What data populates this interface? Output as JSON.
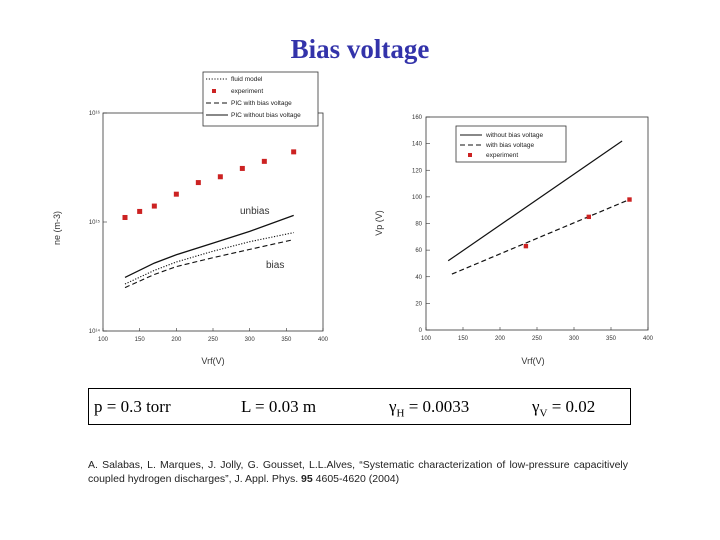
{
  "title": "Bias voltage",
  "params": {
    "p": "p = 0.3 torr",
    "L": "L = 0.03 m",
    "gammaH_sym": "γ",
    "gammaH_sub": "H",
    "gammaH_val": " = 0.0033",
    "gammaV_sym": "γ",
    "gammaV_sub": "V",
    "gammaV_val": " = 0.02"
  },
  "citation": {
    "pre": "A. Salabas, L. Marques, J. Jolly, G. Gousset, L.L.Alves, “Systematic characterization of low-pressure capacitively coupled hydrogen discharges”, J. Appl. Phys. ",
    "volume": "95",
    "post": " 4605-4620 (2004)"
  },
  "chart_data": [
    {
      "type": "line",
      "xlabel": "Vrf(V)",
      "ylabel": "ne (m-3)",
      "xlim": [
        100,
        400
      ],
      "ylim": [
        100000000000000.0,
        1e+16
      ],
      "log_y": true,
      "x_ticks": [
        "100",
        "150",
        "200",
        "250",
        "300",
        "350",
        "400"
      ],
      "y_ticks": [
        "10¹⁴",
        "10¹⁵",
        "10¹⁶"
      ],
      "legend": {
        "placement": "top-center",
        "entries": [
          "fluid model",
          "experiment",
          "PIC with bias voltage",
          "PIC without bias voltage"
        ]
      },
      "annotations": [
        "unbias",
        "bias"
      ],
      "series": [
        {
          "name": "experiment",
          "style": "marker",
          "color": "#cc2222",
          "x": [
            130,
            150,
            170,
            200,
            230,
            260,
            290,
            320,
            360
          ],
          "y": [
            1100000000000000.0,
            1250000000000000.0,
            1400000000000000.0,
            1800000000000000.0,
            2300000000000000.0,
            2600000000000000.0,
            3100000000000000.0,
            3600000000000000.0,
            4400000000000000.0
          ]
        },
        {
          "name": "PIC without bias voltage",
          "style": "solid",
          "x": [
            130,
            170,
            200,
            250,
            300,
            360
          ],
          "y": [
            310000000000000.0,
            420000000000000.0,
            500000000000000.0,
            640000000000000.0,
            820000000000000.0,
            1150000000000000.0
          ]
        },
        {
          "name": "fluid model",
          "style": "dotted",
          "x": [
            130,
            170,
            200,
            250,
            300,
            360
          ],
          "y": [
            270000000000000.0,
            360000000000000.0,
            430000000000000.0,
            540000000000000.0,
            660000000000000.0,
            800000000000000.0
          ]
        },
        {
          "name": "PIC with bias voltage",
          "style": "dashed",
          "x": [
            130,
            170,
            200,
            250,
            300,
            360
          ],
          "y": [
            250000000000000.0,
            330000000000000.0,
            390000000000000.0,
            470000000000000.0,
            560000000000000.0,
            690000000000000.0
          ]
        }
      ]
    },
    {
      "type": "line",
      "xlabel": "Vrf(V)",
      "ylabel": "Vp (V)",
      "xlim": [
        100,
        400
      ],
      "ylim": [
        0,
        160
      ],
      "x_ticks": [
        "100",
        "150",
        "200",
        "250",
        "300",
        "350",
        "400"
      ],
      "y_ticks": [
        "0",
        "20",
        "40",
        "60",
        "80",
        "100",
        "120",
        "140",
        "160"
      ],
      "legend": {
        "placement": "top-left",
        "entries": [
          "without bias voltage",
          "with bias voltage",
          "experiment"
        ]
      },
      "series": [
        {
          "name": "without bias voltage",
          "style": "solid",
          "x": [
            130,
            365
          ],
          "y": [
            52,
            142
          ]
        },
        {
          "name": "with bias voltage",
          "style": "dashed",
          "x": [
            135,
            375
          ],
          "y": [
            42,
            98
          ]
        },
        {
          "name": "experiment",
          "style": "marker",
          "color": "#cc2222",
          "x": [
            235,
            320,
            375
          ],
          "y": [
            63,
            85,
            98
          ]
        }
      ]
    }
  ]
}
